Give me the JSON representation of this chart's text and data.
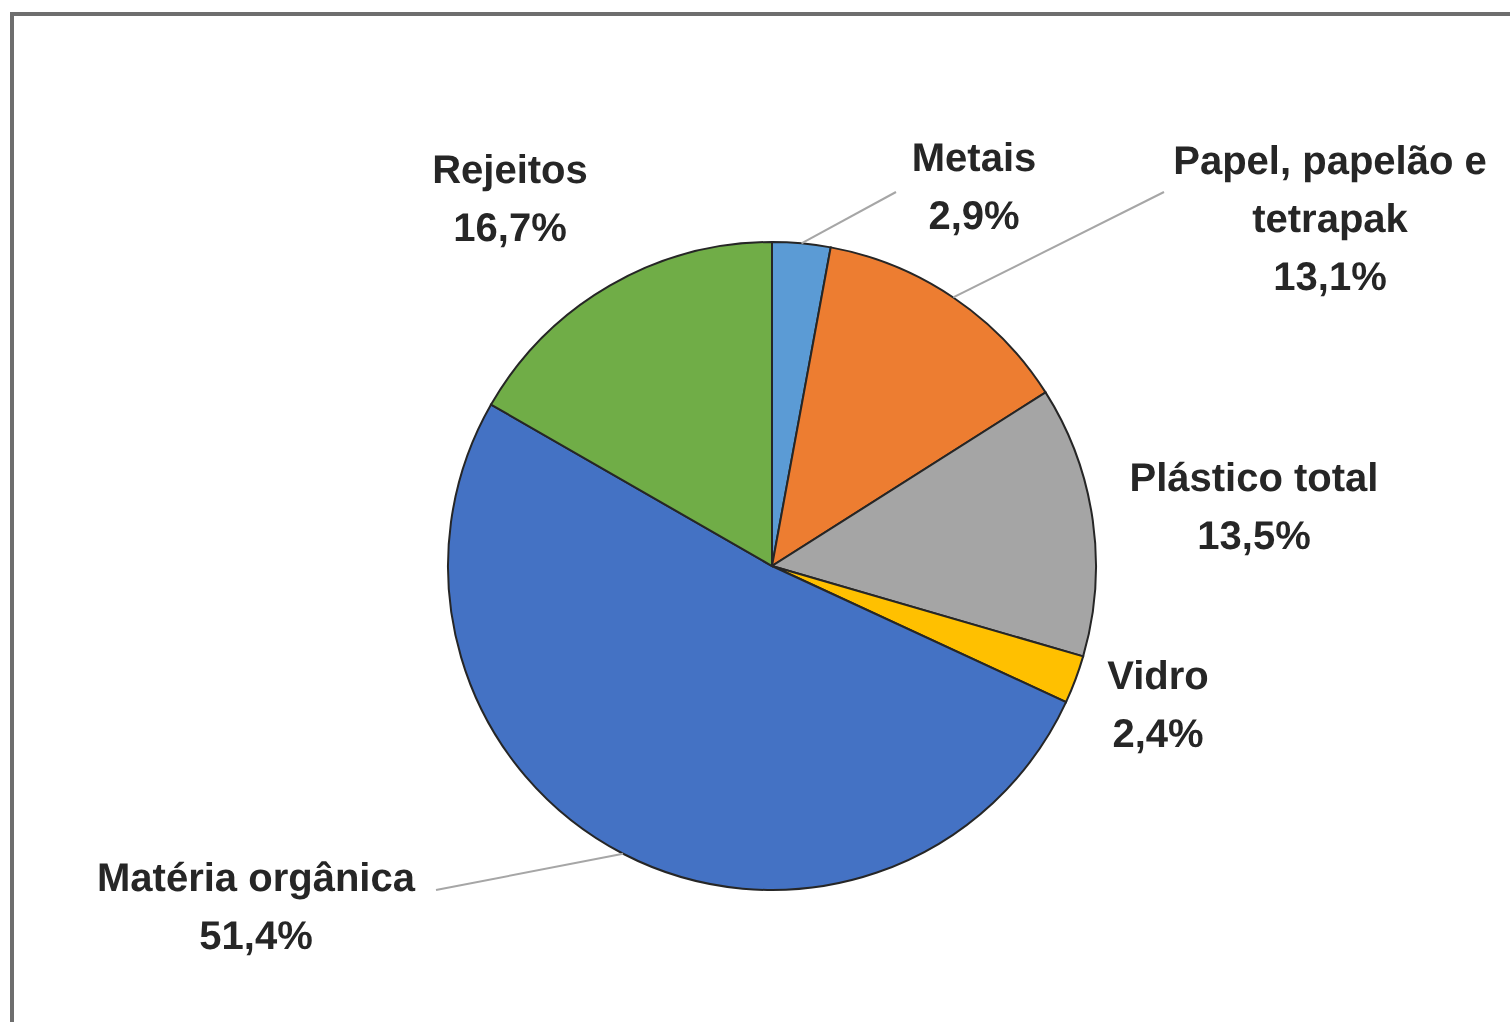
{
  "chart_data": {
    "type": "pie",
    "categories": [
      "Metais",
      "Papel, papelão e tetrapak",
      "Plástico total",
      "Vidro",
      "Matéria orgânica",
      "Rejeitos"
    ],
    "values": [
      2.9,
      13.1,
      13.5,
      2.4,
      51.4,
      16.7
    ],
    "colors": [
      "#5b9bd5",
      "#ed7d31",
      "#a5a5a5",
      "#ffc000",
      "#4472c4",
      "#70ad47"
    ],
    "value_labels": [
      "2,9%",
      "13,1%",
      "13,5%",
      "2,4%",
      "51,4%",
      "16,7%"
    ]
  }
}
